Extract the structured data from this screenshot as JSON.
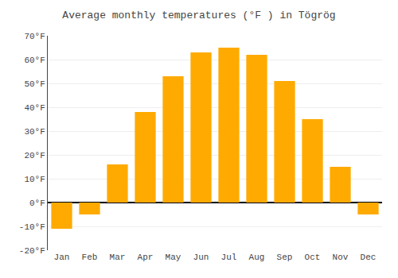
{
  "chart_data": {
    "type": "bar",
    "title": "Average monthly temperatures (°F ) in Tögrög",
    "categories": [
      "Jan",
      "Feb",
      "Mar",
      "Apr",
      "May",
      "Jun",
      "Jul",
      "Aug",
      "Sep",
      "Oct",
      "Nov",
      "Dec"
    ],
    "values": [
      -11,
      -5,
      16,
      38,
      53,
      63,
      65,
      62,
      51,
      35,
      15,
      -5
    ],
    "color": "#FFAA00",
    "ylim": [
      -20,
      70
    ],
    "yticks": [
      {
        "value": -20,
        "label": "-20°F"
      },
      {
        "value": -10,
        "label": "-10°F"
      },
      {
        "value": 0,
        "label": "0°F"
      },
      {
        "value": 10,
        "label": "10°F"
      },
      {
        "value": 20,
        "label": "20°F"
      },
      {
        "value": 30,
        "label": "30°F"
      },
      {
        "value": 40,
        "label": "40°F"
      },
      {
        "value": 50,
        "label": "50°F"
      },
      {
        "value": 60,
        "label": "60°F"
      },
      {
        "value": 70,
        "label": "70°F"
      }
    ],
    "grid": true
  }
}
